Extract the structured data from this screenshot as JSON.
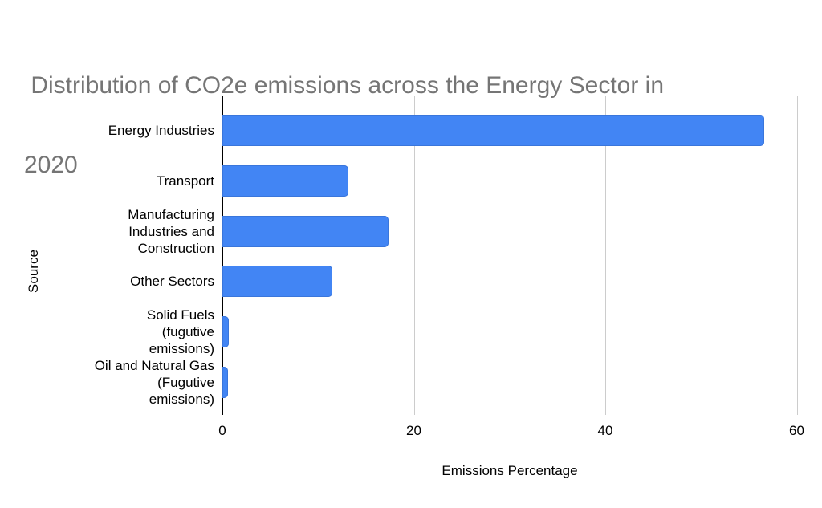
{
  "chart_data": {
    "type": "bar",
    "orientation": "horizontal",
    "title": "Distribution of CO2e emissions across the Energy Sector in 2020",
    "title_lines": [
      " Distribution of CO2e emissions across the Energy Sector in",
      "2020"
    ],
    "xlabel": "Emissions Percentage",
    "ylabel": "Source",
    "categories": [
      "Energy Industries",
      "Transport",
      "Manufacturing Industries and Construction",
      "Other Sectors",
      "Solid Fuels (fugutive emissions)",
      "Oil and Natural Gas (Fugutive emissions)"
    ],
    "category_label_lines": [
      [
        "Energy Industries"
      ],
      [
        "Transport"
      ],
      [
        "Manufacturing",
        "Industries and",
        "Construction"
      ],
      [
        "Other Sectors"
      ],
      [
        "Solid Fuels",
        "(fugutive",
        "emissions)"
      ],
      [
        "Oil and Natural Gas",
        "(Fugutive",
        "emissions)"
      ]
    ],
    "values": [
      56.6,
      13.2,
      17.4,
      11.5,
      0.7,
      0.6
    ],
    "xticks": [
      0,
      20,
      40,
      60
    ],
    "xlim": [
      0,
      61.8
    ],
    "grid": true,
    "legend": "none",
    "colors": {
      "bar": "#4285f4",
      "bar_edge": "#3a76db",
      "title": "#757575",
      "axis_text": "#000000",
      "gridline": "#cccccc",
      "baseline": "#000000",
      "background": "#ffffff"
    }
  }
}
